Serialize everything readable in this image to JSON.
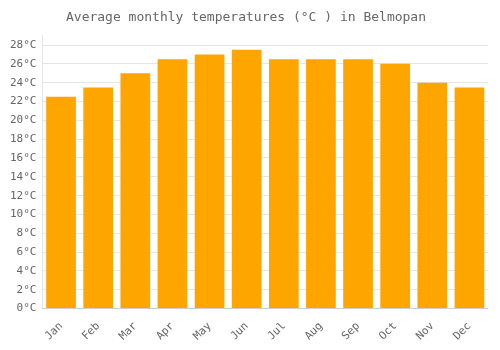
{
  "chart_data": {
    "type": "bar",
    "title": "Average monthly temperatures (°C ) in Belmopan",
    "categories": [
      "Jan",
      "Feb",
      "Mar",
      "Apr",
      "May",
      "Jun",
      "Jul",
      "Aug",
      "Sep",
      "Oct",
      "Nov",
      "Dec"
    ],
    "values": [
      22.5,
      23.5,
      25.0,
      26.5,
      27.0,
      27.5,
      26.5,
      26.5,
      26.5,
      26.0,
      24.0,
      23.5
    ],
    "color": "#FFA500",
    "ylim": [
      0,
      29
    ],
    "yticks": [
      {
        "value": 0,
        "label": "0°C"
      },
      {
        "value": 2,
        "label": "2°C"
      },
      {
        "value": 4,
        "label": "4°C"
      },
      {
        "value": 6,
        "label": "6°C"
      },
      {
        "value": 8,
        "label": "8°C"
      },
      {
        "value": 10,
        "label": "10°C"
      },
      {
        "value": 12,
        "label": "12°C"
      },
      {
        "value": 14,
        "label": "14°C"
      },
      {
        "value": 16,
        "label": "16°C"
      },
      {
        "value": 18,
        "label": "18°C"
      },
      {
        "value": 20,
        "label": "20°C"
      },
      {
        "value": 22,
        "label": "22°C"
      },
      {
        "value": 24,
        "label": "24°C"
      },
      {
        "value": 26,
        "label": "26°C"
      },
      {
        "value": 28,
        "label": "28°C"
      }
    ],
    "grid": true
  }
}
